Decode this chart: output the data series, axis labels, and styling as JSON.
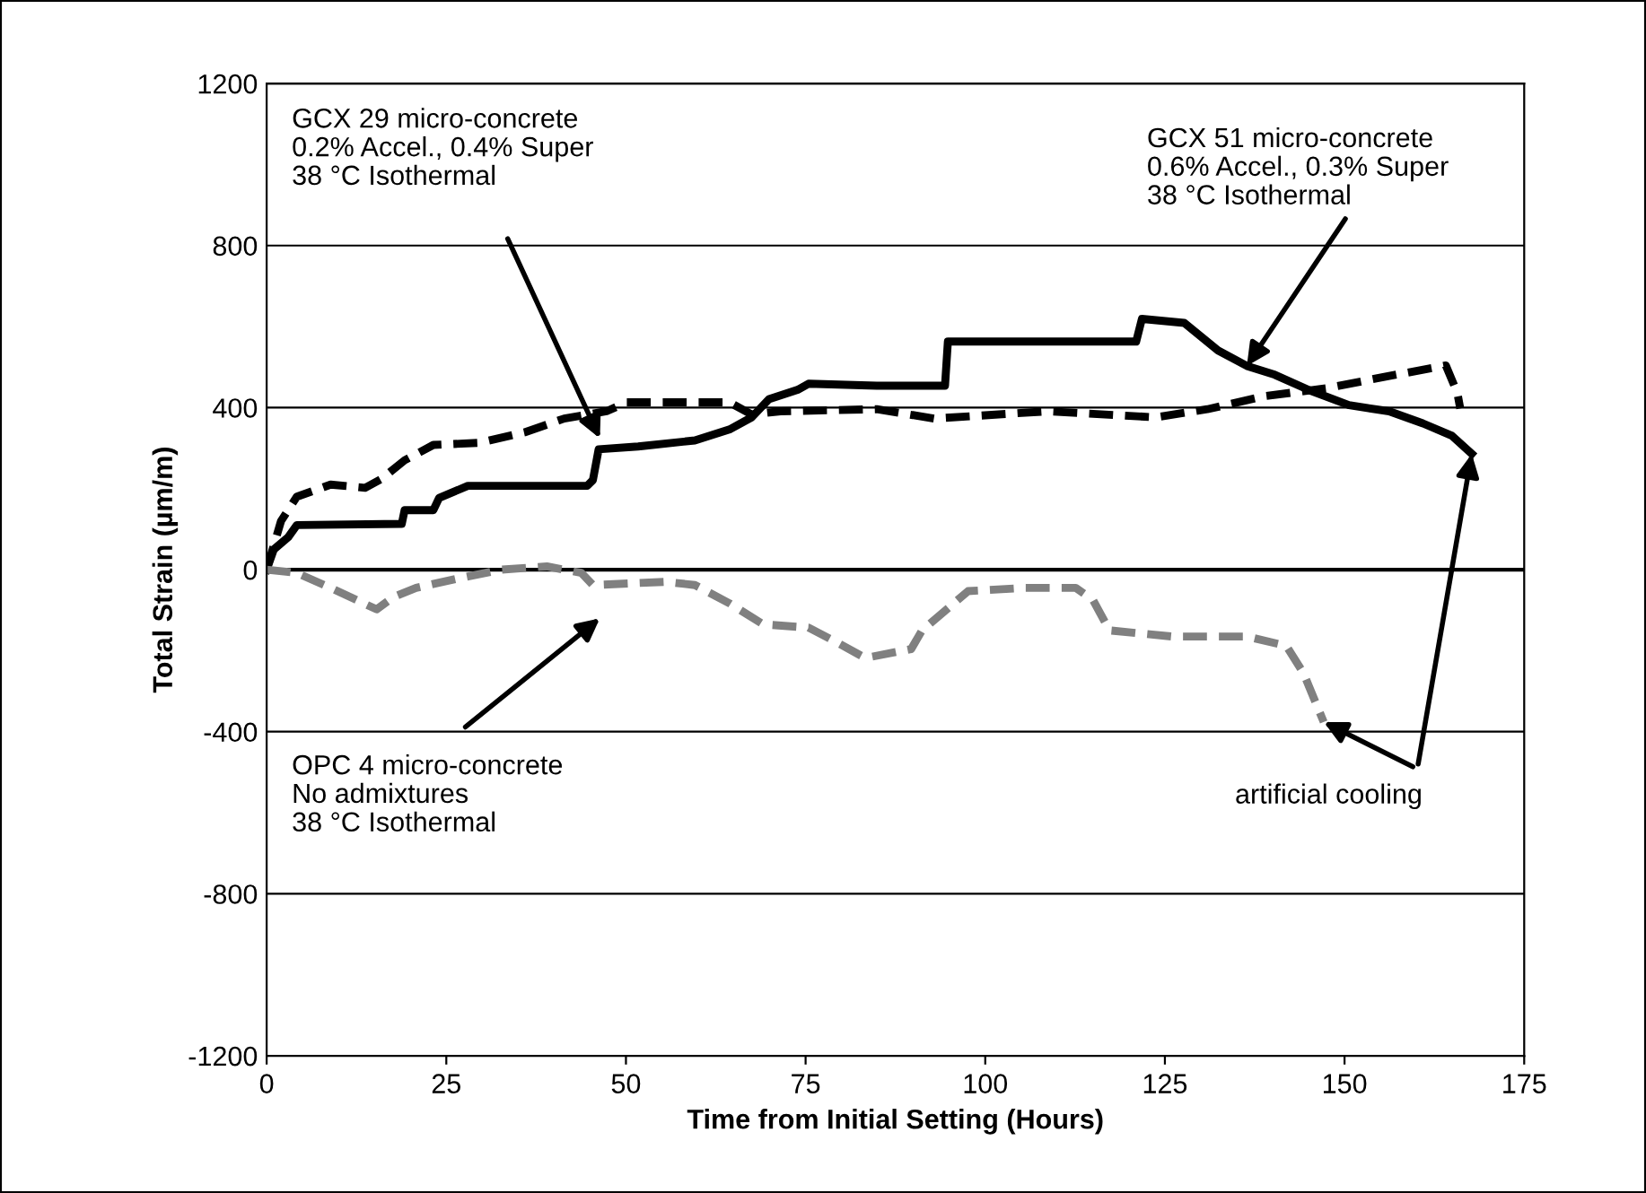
{
  "chart_data": {
    "type": "line",
    "xlabel": "Time from Initial Setting (Hours)",
    "ylabel": "Total Strain (µm/m)",
    "xlim": [
      0,
      175
    ],
    "xticks": [
      0,
      25,
      50,
      75,
      100,
      125,
      150,
      175
    ],
    "ylim": [
      -1200,
      1200
    ],
    "yticks": [
      -1200,
      -800,
      -400,
      0,
      400,
      800,
      1200
    ],
    "grid": "y",
    "legend": false,
    "marker": "none",
    "series": [
      {
        "color": "#000000",
        "line_style": "solid",
        "x": [
          0,
          1,
          3,
          4.2,
          18.8,
          19.2,
          23.2,
          24,
          28,
          44.6,
          45.4,
          46.2,
          51.7,
          59.6,
          64.4,
          67.5,
          69.9,
          73.9,
          75.4,
          84.9,
          94.4,
          94.8,
          121,
          121.8,
          127.7,
          132.4,
          136.4,
          140.3,
          145.1,
          150.6,
          156.2,
          160.9,
          164.9,
          167.7
        ],
        "values": [
          0,
          50,
          80,
          110,
          113,
          147,
          147,
          177,
          207,
          207,
          221,
          297,
          304,
          319,
          346,
          376,
          421,
          444,
          459,
          454,
          454,
          563,
          563,
          619,
          609,
          541,
          503,
          481,
          443,
          406,
          391,
          361,
          331,
          286
        ]
      },
      {
        "color": "#000000",
        "line_style": "dashed",
        "x": [
          0,
          2,
          4.2,
          8.9,
          13.7,
          16,
          19.2,
          23.2,
          29.5,
          35.9,
          41.4,
          47.3,
          50.1,
          64.4,
          67.5,
          71.5,
          84.9,
          92.9,
          108.7,
          123.7,
          130.9,
          138.8,
          147.5,
          156.2,
          164.1,
          165.7,
          166.1
        ],
        "values": [
          0,
          120,
          180,
          210,
          202,
          224,
          270,
          308,
          313,
          339,
          373,
          391,
          413,
          413,
          383,
          391,
          396,
          373,
          391,
          376,
          396,
          428,
          448,
          478,
          504,
          436,
          398
        ]
      },
      {
        "color": "#808080",
        "line_style": "dashed",
        "x": [
          0,
          4.2,
          8.9,
          15.3,
          17.6,
          20.8,
          26.3,
          32.7,
          39,
          43.8,
          45.4,
          55.6,
          59.6,
          64.4,
          69.1,
          75.4,
          79.4,
          83.3,
          89.7,
          91.2,
          97.6,
          105.5,
          112.6,
          115,
          117.3,
          126,
          136.4,
          141.9,
          144.3,
          147.1
        ],
        "values": [
          0,
          -8,
          -45,
          -98,
          -68,
          -45,
          -23,
          0,
          8,
          -8,
          -38,
          -30,
          -38,
          -83,
          -135,
          -143,
          -180,
          -218,
          -196,
          -150,
          -53,
          -45,
          -45,
          -75,
          -150,
          -165,
          -165,
          -188,
          -256,
          -376
        ]
      }
    ],
    "annotations": [
      "GCX 29 micro-concrete\n0.2% Accel., 0.4% Super\n38 °C Isothermal",
      {
        "text": "GCX 51 micro-concrete\n0.6% Accel., 0.3% Super\n38 °C Isothermal",
        "x": 136.4,
        "y": 503
      },
      "OPC 4 micro-concrete\nNo admixtures\n38 °C Isothermal",
      {
        "text": "artificial cooling",
        "x": 147.1,
        "y": -376
      }
    ]
  }
}
